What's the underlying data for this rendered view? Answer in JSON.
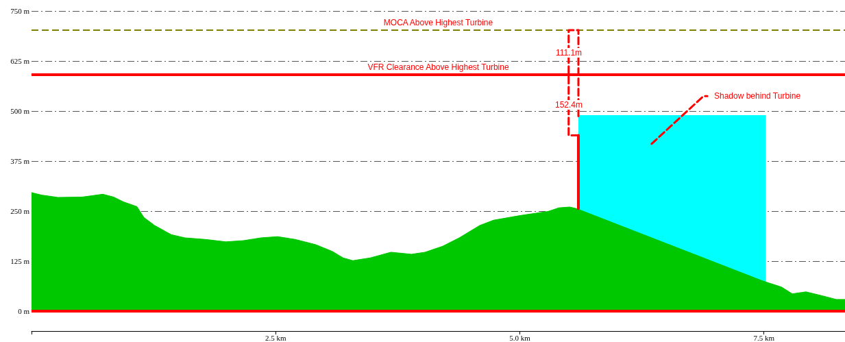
{
  "chart_data": {
    "type": "area",
    "xlim": [
      0,
      8.33
    ],
    "ylim": [
      -50,
      750
    ],
    "xticks": [
      {
        "value": 0,
        "label": null
      },
      {
        "value": 2.5,
        "label": "2.5 km"
      },
      {
        "value": 5,
        "label": "5.0 km"
      },
      {
        "value": 7.5,
        "label": "7.5 km"
      }
    ],
    "yticks": [
      {
        "value": 0,
        "label": "0 m"
      },
      {
        "value": 125,
        "label": "125 m"
      },
      {
        "value": 250,
        "label": "250 m"
      },
      {
        "value": 375,
        "label": "375 m"
      },
      {
        "value": 500,
        "label": "500 m"
      },
      {
        "value": 625,
        "label": "625 m"
      },
      {
        "value": 750,
        "label": "750 m"
      }
    ],
    "grid": "y",
    "series": [
      {
        "type": "area",
        "color": "#00c800",
        "x": [
          0,
          0.1,
          0.27,
          0.52,
          0.73,
          0.84,
          0.94,
          1.08,
          1.15,
          1.26,
          1.43,
          1.57,
          1.78,
          1.99,
          2.17,
          2.35,
          2.52,
          2.7,
          2.91,
          3.08,
          3.19,
          3.29,
          3.47,
          3.68,
          3.89,
          4.03,
          4.21,
          4.38,
          4.59,
          4.73,
          5.01,
          5.29,
          5.4,
          5.51,
          5.58,
          7.49,
          7.68,
          7.79,
          7.93,
          8.1,
          8.24,
          8.33
        ],
        "values": [
          296,
          290,
          284,
          285,
          292,
          285,
          273,
          261,
          234,
          214,
          191,
          183,
          179,
          173,
          176,
          183,
          186,
          179,
          166,
          149,
          133,
          126,
          133,
          147,
          142,
          147,
          162,
          183,
          214,
          227,
          239,
          249,
          258,
          260,
          256,
          75,
          60,
          43,
          48,
          38,
          29,
          29
        ]
      },
      {
        "type": "area",
        "color": "#00ffff",
        "x": [
          5.6,
          7.52
        ],
        "values": [
          487,
          487
        ]
      },
      {
        "type": "line",
        "color": "#ff0000",
        "line_style": "solid",
        "x": [
          5.6,
          5.6
        ],
        "values": [
          256,
          439
        ]
      },
      {
        "type": "line",
        "color": "#ff0000",
        "line_style": "dashed",
        "x": [
          5.6,
          5.5,
          5.5,
          5.6
        ],
        "values": [
          439,
          439,
          702,
          702
        ]
      },
      {
        "type": "line",
        "color": "#ff0000",
        "line_style": "dashed",
        "x": [
          5.6,
          5.6
        ],
        "values": [
          487,
          702
        ]
      },
      {
        "type": "line",
        "color": "#ff0000",
        "line_style": "dashed",
        "x": [
          6.35,
          6.88,
          6.92
        ],
        "values": [
          418,
          537,
          537
        ]
      }
    ],
    "ref_lines": [
      {
        "axis": "y",
        "value": 702,
        "label": "MOCA Above Highest Turbine",
        "color": "#808000",
        "line_style": "dashed"
      },
      {
        "axis": "y",
        "value": 591,
        "label": "VFR Clearance Above Highest Turbine",
        "color": "#ff0000",
        "line_style": "solid"
      },
      {
        "axis": "y",
        "value": 0,
        "label": null,
        "color": "#ff0000",
        "line_style": "solid"
      }
    ],
    "annotations": [
      "111.1m",
      "152.4m",
      "Shadow behind Turbine"
    ]
  }
}
